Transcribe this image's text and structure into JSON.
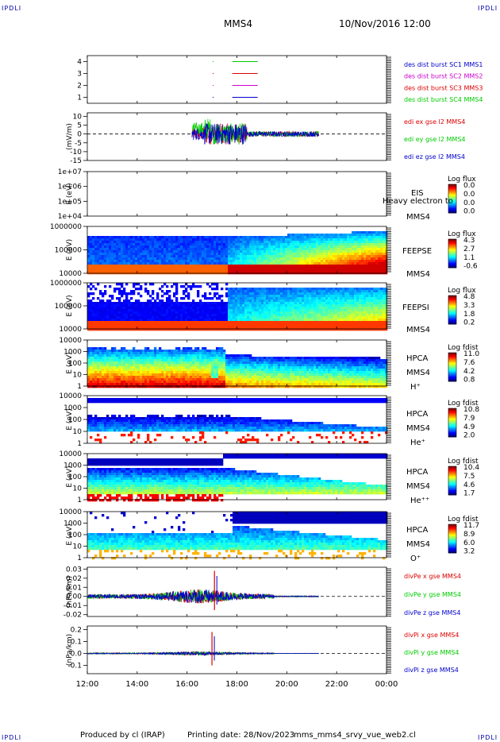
{
  "corner_label": "IPDLI",
  "header": {
    "spacecraft": "MMS4",
    "date_time": "10/Nov/2016 12:00"
  },
  "footer": {
    "produced_by": "Produced by cl (IRAP)",
    "printing_date": "Printing date: 28/Nov/2023",
    "file_name": "mms_mms4_srvy_vue_web2.cl"
  },
  "colors": {
    "red": "#dd0000",
    "green": "#00cc00",
    "blue": "#0000cc",
    "magenta": "#cc00cc"
  },
  "chart_data": {
    "type": "multi-panel-timeseries",
    "x_ticks": [
      "12:00",
      "14:00",
      "16:00",
      "18:00",
      "20:00",
      "22:00",
      "00:00"
    ],
    "xlim_hours": [
      12,
      24
    ],
    "panels": [
      {
        "id": "burst",
        "type": "line",
        "ylim": [
          0.5,
          4.5
        ],
        "y_ticks": [
          "1",
          "2",
          "3",
          "4"
        ],
        "y_tick_values": [
          1,
          2,
          3,
          4
        ],
        "ylabel": "",
        "legend": [
          {
            "text": "des dist burst SC1 MMS1",
            "color": "#0000cc"
          },
          {
            "text": "des dist burst SC2 MMS2",
            "color": "#cc00cc"
          },
          {
            "text": "des dist burst SC3 MMS3",
            "color": "#dd0000"
          },
          {
            "text": "des dist burst SC4 MMS4",
            "color": "#00cc00"
          }
        ],
        "series": [
          {
            "color": "#00cc00",
            "level": 4,
            "x": [
              17.75,
              18.72
            ]
          },
          {
            "color": "#dd0000",
            "level": 3,
            "x": [
              17.75,
              18.72
            ]
          },
          {
            "color": "#cc00cc",
            "level": 2,
            "x": [
              17.75,
              18.72
            ]
          },
          {
            "color": "#0000cc",
            "level": 1,
            "x": [
              17.75,
              18.72
            ]
          }
        ]
      },
      {
        "id": "efield",
        "type": "line",
        "ylim": [
          -15,
          12
        ],
        "y_ticks": [
          "10",
          "5",
          "0",
          "-5",
          "-10",
          "-15"
        ],
        "y_tick_values": [
          10,
          5,
          0,
          -5,
          -10,
          -15
        ],
        "ylabel": "(mV/m)",
        "legend": [
          {
            "text": "edi ex gse l2 MMS4",
            "color": "#dd0000"
          },
          {
            "text": "edi ey gse l2 MMS4",
            "color": "#00cc00"
          },
          {
            "text": "edi ez gse l2 MMS4",
            "color": "#0000cc"
          }
        ],
        "active_range": [
          16.2,
          21.3
        ],
        "amplitude": 6
      },
      {
        "id": "eis",
        "type": "heatmap",
        "log_y": true,
        "y_ticks": [
          "1e+07",
          "1e+06",
          "1e+05",
          "1e+04"
        ],
        "y_tick_values": [
          10000000,
          1000000,
          100000,
          10000
        ],
        "ylabel": "E (eV)",
        "side_labels": [
          "EIS",
          "MMS4"
        ],
        "overlay_text": "Heavy electron to",
        "colorbar_title": "Log flux",
        "colorbar_ticks": [
          "0.0",
          "0.0",
          "0.0",
          "0.0"
        ],
        "empty": true
      },
      {
        "id": "feepse",
        "type": "heatmap",
        "log_y": true,
        "y_ticks": [
          "1000000",
          "100000",
          "10000"
        ],
        "y_tick_values": [
          1000000,
          100000,
          10000
        ],
        "ylabel": "E (eV)",
        "side_labels": [
          "FEEPSE",
          "MMS4"
        ],
        "colorbar_title": "Log flux",
        "colorbar_ticks": [
          "4.3",
          "2.7",
          "1.1",
          "-0.6"
        ],
        "profile": "feeps_e"
      },
      {
        "id": "feepsi",
        "type": "heatmap",
        "log_y": true,
        "y_ticks": [
          "1000000",
          "100000",
          "10000"
        ],
        "y_tick_values": [
          1000000,
          100000,
          10000
        ],
        "ylabel": "E (eV)",
        "side_labels": [
          "FEEPSI",
          "MMS4"
        ],
        "colorbar_title": "Log flux",
        "colorbar_ticks": [
          "4.8",
          "3.3",
          "1.8",
          "0.2"
        ],
        "profile": "feeps_i"
      },
      {
        "id": "hpca_h",
        "type": "heatmap",
        "log_y": true,
        "y_ticks": [
          "10000",
          "1000",
          "100",
          "10",
          "1"
        ],
        "y_tick_values": [
          10000,
          1000,
          100,
          10,
          1
        ],
        "ylabel": "E (eV)",
        "side_labels": [
          "HPCA",
          "MMS4",
          "H⁺"
        ],
        "colorbar_title": "Log fdist",
        "colorbar_ticks": [
          "11.0",
          "7.6",
          "4.2",
          "0.8"
        ],
        "profile": "hpca_h"
      },
      {
        "id": "hpca_he1",
        "type": "heatmap",
        "log_y": true,
        "y_ticks": [
          "10000",
          "1000",
          "100",
          "10",
          "1"
        ],
        "y_tick_values": [
          10000,
          1000,
          100,
          10,
          1
        ],
        "ylabel": "E (eV)",
        "side_labels": [
          "HPCA",
          "MMS4",
          "He⁺"
        ],
        "colorbar_title": "Log fdist",
        "colorbar_ticks": [
          "10.8",
          "7.9",
          "4.9",
          "2.0"
        ],
        "profile": "hpca_he1"
      },
      {
        "id": "hpca_he2",
        "type": "heatmap",
        "log_y": true,
        "y_ticks": [
          "10000",
          "1000",
          "100",
          "10",
          "1"
        ],
        "y_tick_values": [
          10000,
          1000,
          100,
          10,
          1
        ],
        "ylabel": "E (eV)",
        "side_labels": [
          "HPCA",
          "MMS4",
          "He⁺⁺"
        ],
        "colorbar_title": "Log fdist",
        "colorbar_ticks": [
          "10.4",
          "7.5",
          "4.6",
          "1.7"
        ],
        "profile": "hpca_he2"
      },
      {
        "id": "hpca_o",
        "type": "heatmap",
        "log_y": true,
        "y_ticks": [
          "10000",
          "1000",
          "100",
          "10",
          "1"
        ],
        "y_tick_values": [
          10000,
          1000,
          100,
          10,
          1
        ],
        "ylabel": "E (eV)",
        "side_labels": [
          "HPCA",
          "MMS4",
          "O⁺"
        ],
        "colorbar_title": "Log fdist",
        "colorbar_ticks": [
          "11.7",
          "8.9",
          "6.0",
          "3.2"
        ],
        "profile": "hpca_o"
      },
      {
        "id": "divpe",
        "type": "line",
        "ylim": [
          -0.022,
          0.032
        ],
        "y_ticks": [
          "0.03",
          "0.02",
          "0.01",
          "0.00",
          "-0.01",
          "-0.02"
        ],
        "y_tick_values": [
          0.03,
          0.02,
          0.01,
          0.0,
          -0.01,
          -0.02
        ],
        "ylabel": "(nPa/km)",
        "legend": [
          {
            "text": "divPe x gse MMS4",
            "color": "#dd0000"
          },
          {
            "text": "divPe y gse MMS4",
            "color": "#00cc00"
          },
          {
            "text": "divPe z gse MMS4",
            "color": "#0000cc"
          }
        ],
        "active_range": [
          12.0,
          21.3
        ],
        "amplitude": 0.006,
        "spike": {
          "x": 17.1,
          "low": -0.015,
          "high": 0.028
        }
      },
      {
        "id": "divpi",
        "type": "line",
        "ylim": [
          -0.17,
          0.23
        ],
        "y_ticks": [
          "0.2",
          "0.1",
          "0.0",
          "-0.1"
        ],
        "y_tick_values": [
          0.2,
          0.1,
          0.0,
          -0.1
        ],
        "ylabel": "(nPa/km)",
        "legend": [
          {
            "text": "divPi x gse MMS4",
            "color": "#dd0000"
          },
          {
            "text": "divPi y gse MMS4",
            "color": "#00cc00"
          },
          {
            "text": "divPi z gse MMS4",
            "color": "#0000cc"
          }
        ],
        "active_range": [
          12.0,
          21.3
        ],
        "amplitude": 0.012,
        "spike": {
          "x": 17.0,
          "low": -0.1,
          "high": 0.18
        }
      }
    ]
  }
}
